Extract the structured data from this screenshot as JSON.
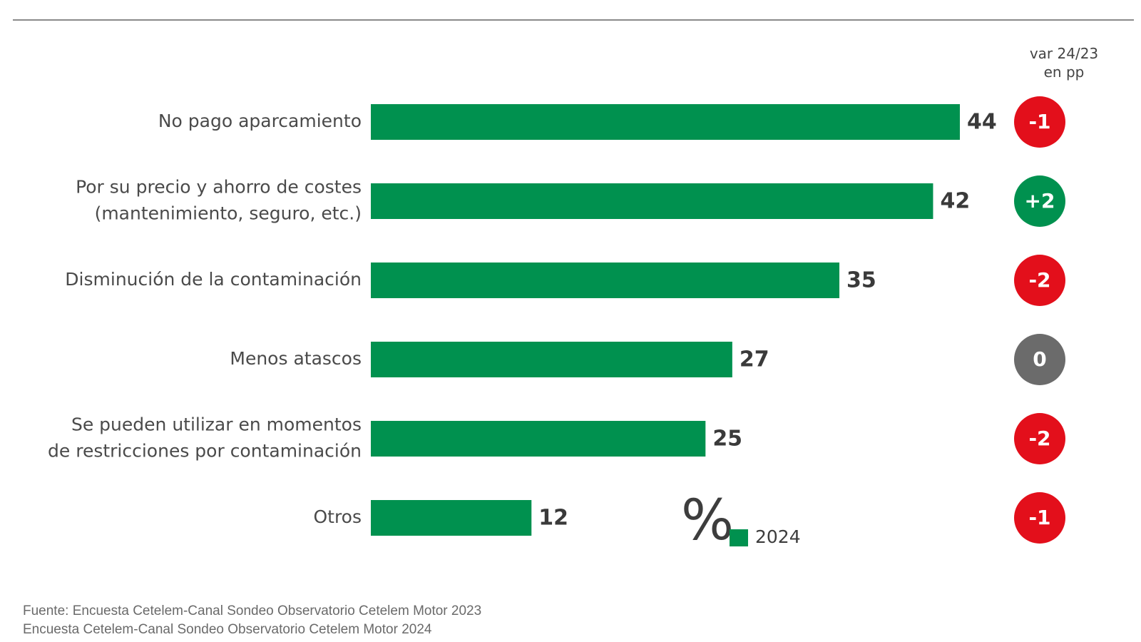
{
  "colors": {
    "bar": "#00914f",
    "negative": "#e30f1b",
    "positive": "#00914f",
    "neutral": "#6b6b6b"
  },
  "chart_data": {
    "type": "bar",
    "orientation": "horizontal",
    "categories": [
      [
        "No pago aparcamiento"
      ],
      [
        "Por su precio y ahorro de costes",
        "(mantenimiento, seguro, etc.)"
      ],
      [
        "Disminución de la contaminación"
      ],
      [
        "Menos atascos"
      ],
      [
        "Se pueden utilizar en momentos",
        "de restricciones por contaminación"
      ],
      [
        "Otros"
      ]
    ],
    "series": [
      {
        "name": "2024",
        "values": [
          44,
          42,
          35,
          27,
          25,
          12
        ]
      }
    ],
    "variation": {
      "header": [
        "var 24/23",
        "en pp"
      ],
      "values": [
        "-1",
        "+2",
        "-2",
        "0",
        "-2",
        "-1"
      ]
    },
    "unit": "%",
    "xlim": [
      0,
      44
    ],
    "grid": false,
    "legend": "bottom-right"
  },
  "source": [
    "Fuente: Encuesta Cetelem-Canal Sondeo Observatorio Cetelem Motor 2023",
    "Encuesta Cetelem-Canal Sondeo Observatorio Cetelem Motor 2024"
  ]
}
